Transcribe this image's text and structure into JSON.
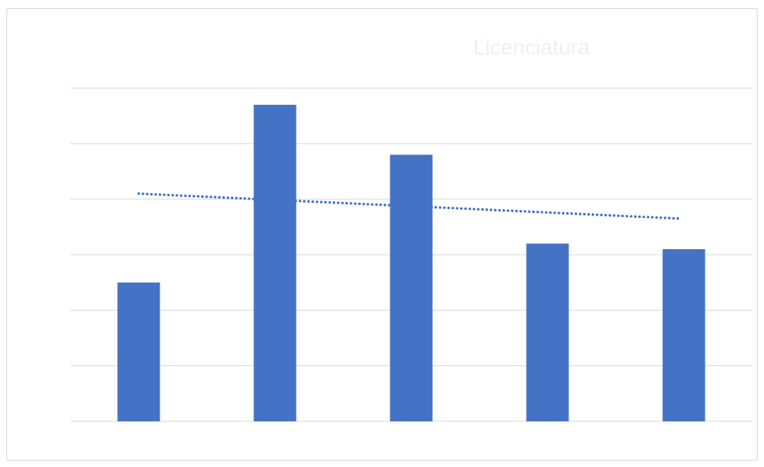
{
  "chart_data": {
    "type": "bar",
    "title": "Licenciatura",
    "categories": [
      "",
      "",
      "",
      "",
      ""
    ],
    "values": [
      2.5,
      5.7,
      4.8,
      3.2,
      3.1
    ],
    "ylim": [
      0,
      6
    ],
    "grid": true,
    "legend": "none",
    "trendline": {
      "type": "linear",
      "style": "dotted",
      "start": 4.1,
      "end": 3.65
    },
    "colors": {
      "bar": "#4472C4",
      "trend": "#4472C4",
      "grid": "#d9d9d9",
      "title": "#f0f0f0",
      "border": "#d9d9d9"
    }
  }
}
